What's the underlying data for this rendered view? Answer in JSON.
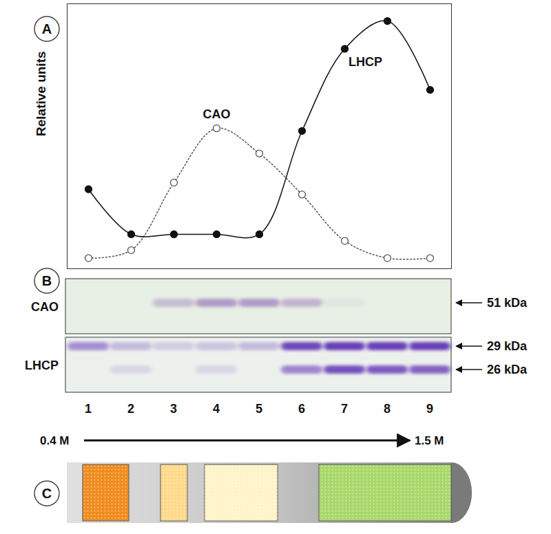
{
  "chart_data": {
    "type": "line",
    "panel": "A",
    "ylabel": "Relative units",
    "x": [
      1,
      2,
      3,
      4,
      5,
      6,
      7,
      8,
      9
    ],
    "xlim": [
      0.5,
      9.5
    ],
    "ylim": [
      0,
      100
    ],
    "tick_labels": false,
    "grid": false,
    "series": [
      {
        "name": "CAO",
        "color": "#555555",
        "line_style": "dotted",
        "marker": "open",
        "values": [
          4,
          7,
          32.5,
          53,
          43.5,
          28,
          10.5,
          4,
          4
        ]
      },
      {
        "name": "LHCP",
        "color": "#111111",
        "line_style": "solid",
        "marker": "filled",
        "values": [
          30,
          13,
          13,
          13,
          13,
          52,
          83,
          93.5,
          67.5
        ]
      }
    ]
  },
  "blot": {
    "panel": "B",
    "lanes": [
      "1",
      "2",
      "3",
      "4",
      "5",
      "6",
      "7",
      "8",
      "9"
    ],
    "strips": [
      {
        "label": "CAO",
        "color": "#7a4bb0",
        "bands": [
          {
            "label": "51 kDa",
            "intensity": [
              0,
              0,
              0.3,
              0.5,
              0.5,
              0.35,
              0.05,
              0,
              0
            ]
          }
        ]
      },
      {
        "label": "LHCP",
        "color": "#6a3fb8",
        "bands": [
          {
            "label": "29 kDa",
            "intensity": [
              0.55,
              0.3,
              0.2,
              0.25,
              0.3,
              0.95,
              1,
              1,
              1
            ]
          },
          {
            "label": "26 kDa",
            "intensity": [
              0,
              0.15,
              0,
              0.15,
              0,
              0.6,
              0.9,
              0.85,
              0.8
            ]
          }
        ]
      }
    ]
  },
  "gradient": {
    "panel": "C",
    "from": "0.4 M",
    "to": "1.5 M",
    "bands": [
      {
        "color": "#f08c1e"
      },
      {
        "color": "#ffd98a"
      },
      {
        "color": "#fff4c8"
      },
      {
        "color": "#a8d86a"
      }
    ]
  }
}
